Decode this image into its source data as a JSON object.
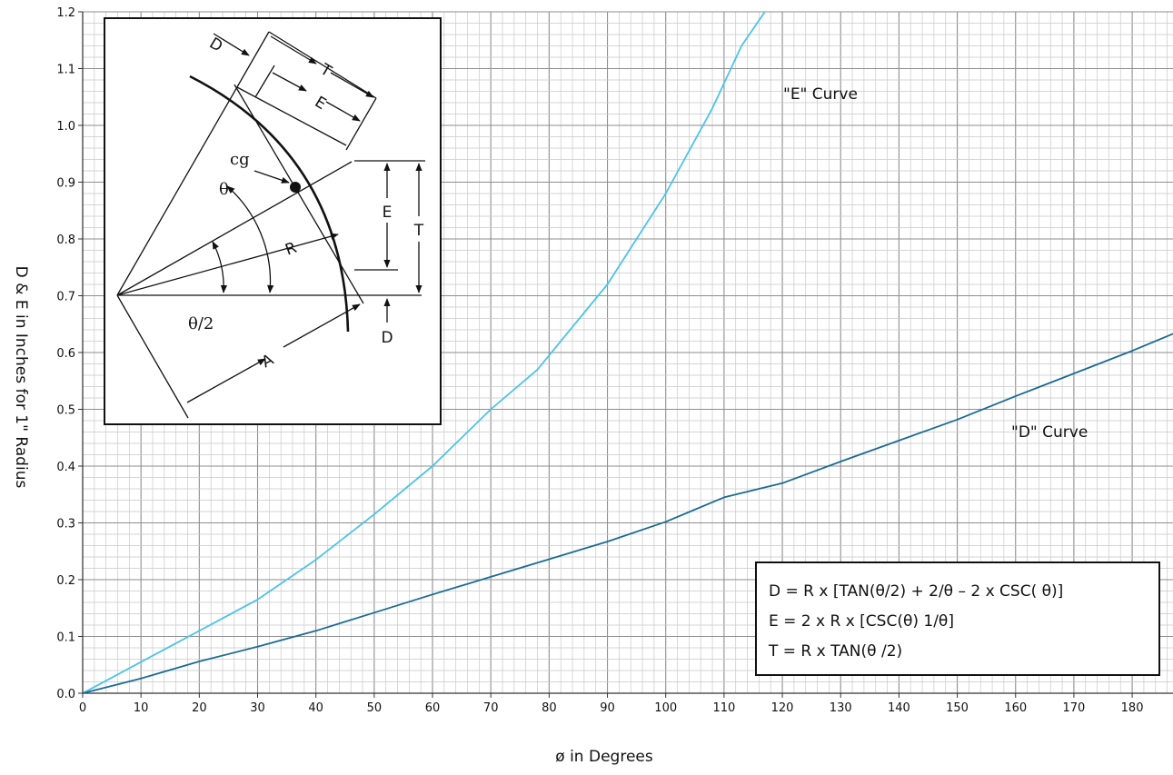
{
  "chart_data": {
    "type": "line",
    "xlabel": "ø in Degrees",
    "ylabel": "D & E in Inches for 1\" Radius",
    "xlim": [
      0,
      187
    ],
    "ylim": [
      0,
      1.2
    ],
    "x_ticks": [
      0,
      10,
      20,
      30,
      40,
      50,
      60,
      70,
      80,
      90,
      100,
      110,
      120,
      130,
      140,
      150,
      160,
      170,
      180
    ],
    "y_ticks": [
      "0.0",
      "0.1",
      "0.2",
      "0.3",
      "0.4",
      "0.5",
      "0.6",
      "0.7",
      "0.8",
      "0.9",
      "1.0",
      "1.1",
      "1.2"
    ],
    "grid": true,
    "series": [
      {
        "name": "\"E\" Curve",
        "color": "#4cc3e8",
        "x": [
          0,
          10,
          20,
          30,
          40,
          50,
          60,
          70,
          78,
          90,
          100,
          108,
          113,
          117
        ],
        "y": [
          0,
          0.055,
          0.11,
          0.165,
          0.235,
          0.315,
          0.4,
          0.5,
          0.57,
          0.72,
          0.88,
          1.03,
          1.14,
          1.2
        ]
      },
      {
        "name": "\"D\" Curve",
        "color": "#1a6b95",
        "x": [
          0,
          10,
          20,
          30,
          40,
          50,
          60,
          70,
          80,
          90,
          100,
          110,
          120,
          130,
          140,
          150,
          160,
          170,
          180,
          187
        ],
        "y": [
          0,
          0.026,
          0.056,
          0.082,
          0.11,
          0.142,
          0.174,
          0.205,
          0.236,
          0.267,
          0.302,
          0.345,
          0.37,
          0.408,
          0.445,
          0.482,
          0.523,
          0.563,
          0.603,
          0.633
        ]
      }
    ],
    "annotations": [
      "\"E\" Curve",
      "\"D\" Curve"
    ]
  },
  "formulas": [
    "D = R x [TAN(θ/2) + 2/θ – 2 x CSC( θ)]",
    "E = 2 x R x [CSC(θ) 1/θ]",
    "T = R x TAN(θ /2)"
  ],
  "diagram_labels": {
    "D_top": "D",
    "T_top": "T",
    "E_top": "E",
    "cg": "cg",
    "theta": "θ",
    "R": "R",
    "E_right": "E",
    "T_right": "T",
    "half_theta": "θ/2",
    "D_bottom": "D",
    "A": "A"
  }
}
